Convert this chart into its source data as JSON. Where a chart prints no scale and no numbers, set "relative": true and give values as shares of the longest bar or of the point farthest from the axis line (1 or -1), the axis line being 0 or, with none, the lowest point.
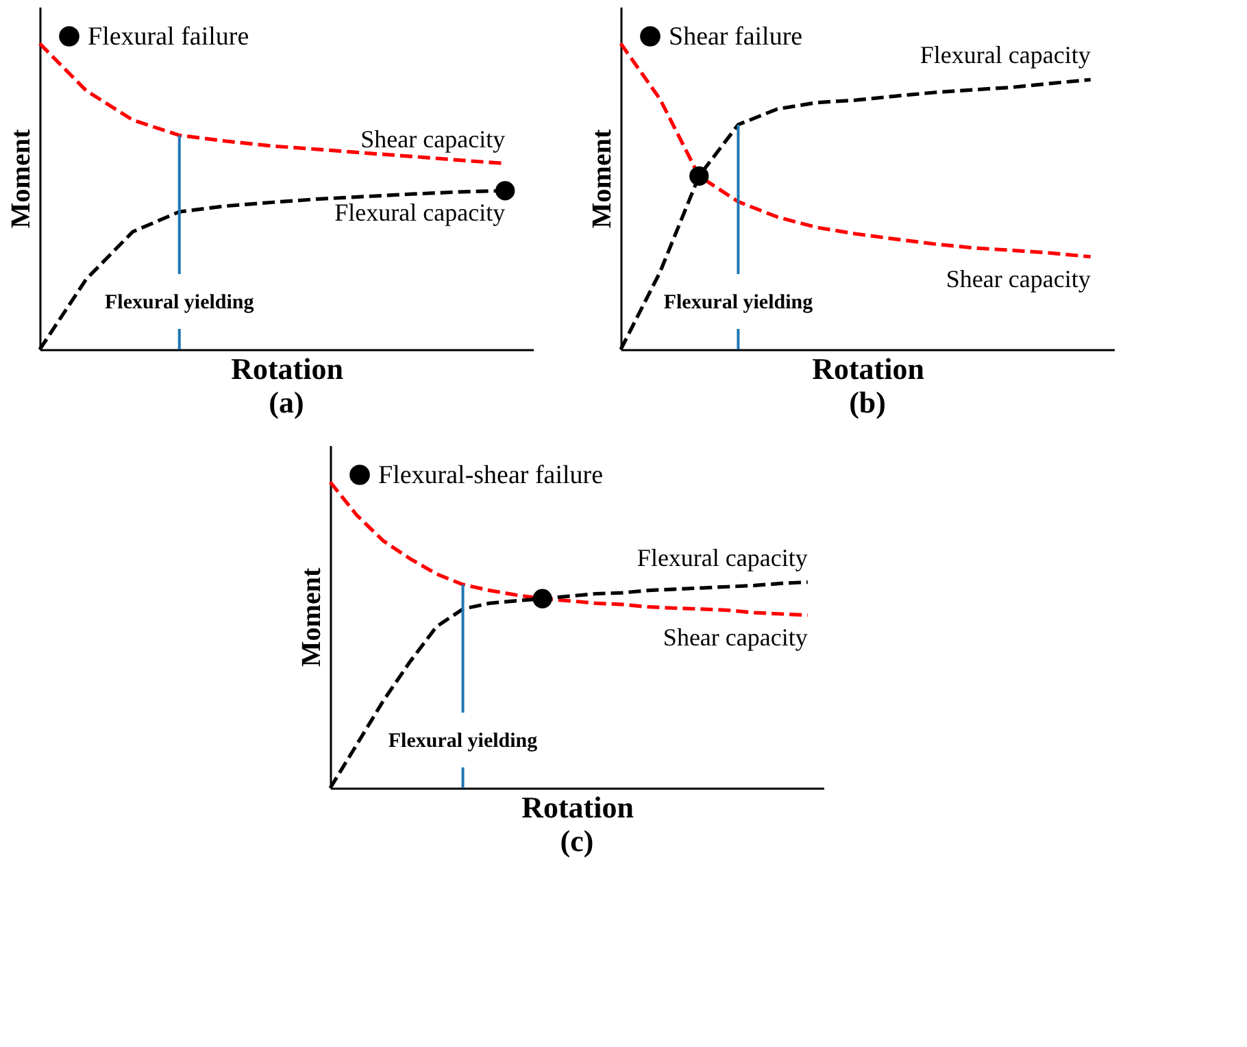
{
  "chart_data": [
    {
      "type": "line",
      "relative": true,
      "title": "(a)",
      "xlabel": "Rotation",
      "ylabel": "Moment",
      "legend": "top left",
      "grid": false,
      "tick_labels": false,
      "categories": [
        null,
        null,
        null,
        null,
        null,
        null,
        null,
        null,
        null,
        null,
        null
      ],
      "series": [
        {
          "name": "Shear capacity",
          "color": "#ff0000",
          "line_style": "dashed",
          "marker": "none",
          "values": [
            1,
            0.846,
            0.75,
            0.7,
            0.681,
            0.665,
            0.654,
            0.642,
            0.631,
            0.619,
            0.608
          ]
        },
        {
          "name": "Flexural capacity",
          "color": "#000000",
          "line_style": "dashed",
          "marker": "none",
          "values": [
            0,
            0.23,
            0.385,
            0.45,
            0.469,
            0.481,
            0.492,
            0.5,
            0.508,
            0.515,
            0.519
          ]
        },
        {
          "type": "line",
          "name": "Flexural failure",
          "color": "#000000",
          "marker": "circle",
          "values": [
            null,
            null,
            null,
            null,
            null,
            null,
            null,
            null,
            null,
            null,
            0.519
          ]
        }
      ],
      "ref_lines": [
        {
          "axis": "x",
          "label": "Flexural yielding",
          "color": "#1f77b4"
        }
      ]
    },
    {
      "type": "line",
      "relative": true,
      "title": "(b)",
      "xlabel": "Rotation",
      "ylabel": "Moment",
      "legend": "top left",
      "grid": false,
      "tick_labels": false,
      "categories": [
        null,
        null,
        null,
        null,
        null,
        null,
        null,
        null,
        null,
        null,
        null,
        null,
        null
      ],
      "series": [
        {
          "name": "Shear capacity",
          "color": "#ff0000",
          "line_style": "dashed",
          "marker": "none",
          "values": [
            1,
            0.819,
            0.567,
            0.483,
            0.433,
            0.399,
            0.378,
            0.361,
            0.345,
            0.332,
            0.324,
            0.315,
            0.303
          ]
        },
        {
          "name": "Flexural capacity",
          "color": "#000000",
          "line_style": "dashed",
          "marker": "none",
          "values": [
            0,
            0.252,
            0.567,
            0.735,
            0.786,
            0.807,
            0.815,
            0.828,
            0.84,
            0.849,
            0.857,
            0.87,
            0.882
          ]
        },
        {
          "type": "line",
          "name": "Shear failure",
          "color": "#000000",
          "marker": "circle",
          "values": [
            null,
            null,
            0.567,
            null,
            null,
            null,
            null,
            null,
            null,
            null,
            null,
            null,
            null
          ]
        }
      ],
      "ref_lines": [
        {
          "axis": "x",
          "label": "Flexural yielding",
          "color": "#1f77b4"
        }
      ]
    },
    {
      "type": "line",
      "relative": true,
      "title": "(c)",
      "xlabel": "Rotation",
      "ylabel": "Moment",
      "legend": "top left",
      "grid": false,
      "tick_labels": false,
      "categories": [
        null,
        null,
        null,
        null,
        null,
        null,
        null,
        null,
        null,
        null,
        null,
        null,
        null,
        null,
        null,
        null,
        null,
        null,
        null
      ],
      "series": [
        {
          "name": "Shear capacity",
          "color": "#ff0000",
          "line_style": "dashed",
          "marker": "none",
          "values": [
            1,
            0.892,
            0.808,
            0.75,
            0.7,
            0.665,
            0.646,
            0.631,
            0.619,
            0.612,
            0.604,
            0.6,
            0.592,
            0.588,
            0.585,
            0.581,
            0.573,
            0.569,
            0.565
          ]
        },
        {
          "name": "Flexural capacity",
          "color": "#000000",
          "line_style": "dashed",
          "marker": "none",
          "values": [
            0,
            0.142,
            0.285,
            0.412,
            0.527,
            0.585,
            0.604,
            0.612,
            0.619,
            0.627,
            0.635,
            0.638,
            0.646,
            0.65,
            0.654,
            0.658,
            0.662,
            0.669,
            0.673
          ]
        },
        {
          "type": "line",
          "name": "Flexural-shear failure",
          "color": "#000000",
          "marker": "circle",
          "values": [
            null,
            null,
            null,
            null,
            null,
            null,
            null,
            null,
            0.619,
            null,
            null,
            null,
            null,
            null,
            null,
            null,
            null,
            null,
            null
          ]
        }
      ],
      "ref_lines": [
        {
          "axis": "x",
          "label": "Flexural yielding",
          "color": "#1f77b4"
        }
      ]
    }
  ]
}
